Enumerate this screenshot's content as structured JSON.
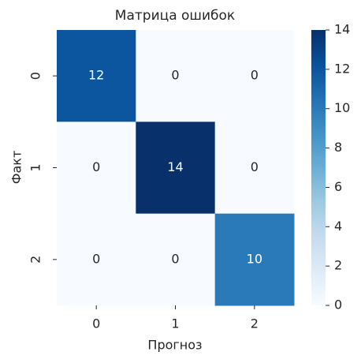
{
  "chart_data": {
    "type": "heatmap",
    "title": "Матрица ошибок",
    "xlabel": "Прогноз",
    "ylabel": "Факт",
    "x_categories": [
      "0",
      "1",
      "2"
    ],
    "y_categories": [
      "0",
      "1",
      "2"
    ],
    "values": [
      [
        12,
        0,
        0
      ],
      [
        0,
        14,
        0
      ],
      [
        0,
        0,
        10
      ]
    ],
    "colormap": "Blues",
    "clim": [
      0,
      14
    ],
    "cticks": [
      0,
      2,
      4,
      6,
      8,
      10,
      12,
      14
    ]
  }
}
